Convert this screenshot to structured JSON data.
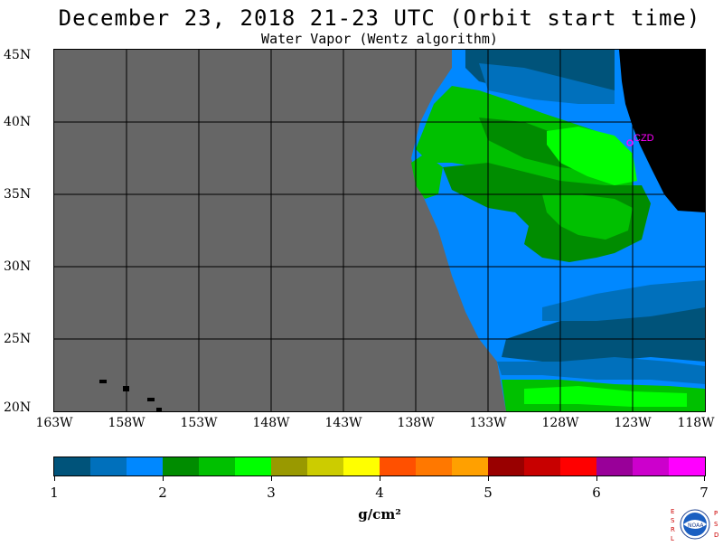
{
  "header": {
    "title": "December 23, 2018  21-23 UTC  (Orbit start time)",
    "subtitle": "Water Vapor (Wentz algorithm)"
  },
  "map": {
    "lat_labels": [
      "45N",
      "40N",
      "35N",
      "30N",
      "25N",
      "20N"
    ],
    "lon_labels": [
      "163W",
      "158W",
      "153W",
      "148W",
      "143W",
      "138W",
      "133W",
      "128W",
      "123W",
      "118W"
    ],
    "station_label": "CZD",
    "colors": {
      "no_data": "#666666",
      "land": "#000000",
      "station": "#ff00ff"
    }
  },
  "colorbar": {
    "tick_labels": [
      "1",
      "2",
      "3",
      "4",
      "5",
      "6",
      "7"
    ],
    "unit": "g/cm²",
    "colors": [
      "#00537a",
      "#0070bc",
      "#0088ff",
      "#008c00",
      "#00c000",
      "#00ff00",
      "#999900",
      "#cccc00",
      "#ffff00",
      "#ff5000",
      "#ff7800",
      "#ffa000",
      "#990000",
      "#c80000",
      "#ff0000",
      "#990099",
      "#cc00cc",
      "#ff00ff"
    ]
  },
  "logo": {
    "left_letters": "ESRL",
    "right_letters": "PSD",
    "center_text": "NOAA"
  }
}
